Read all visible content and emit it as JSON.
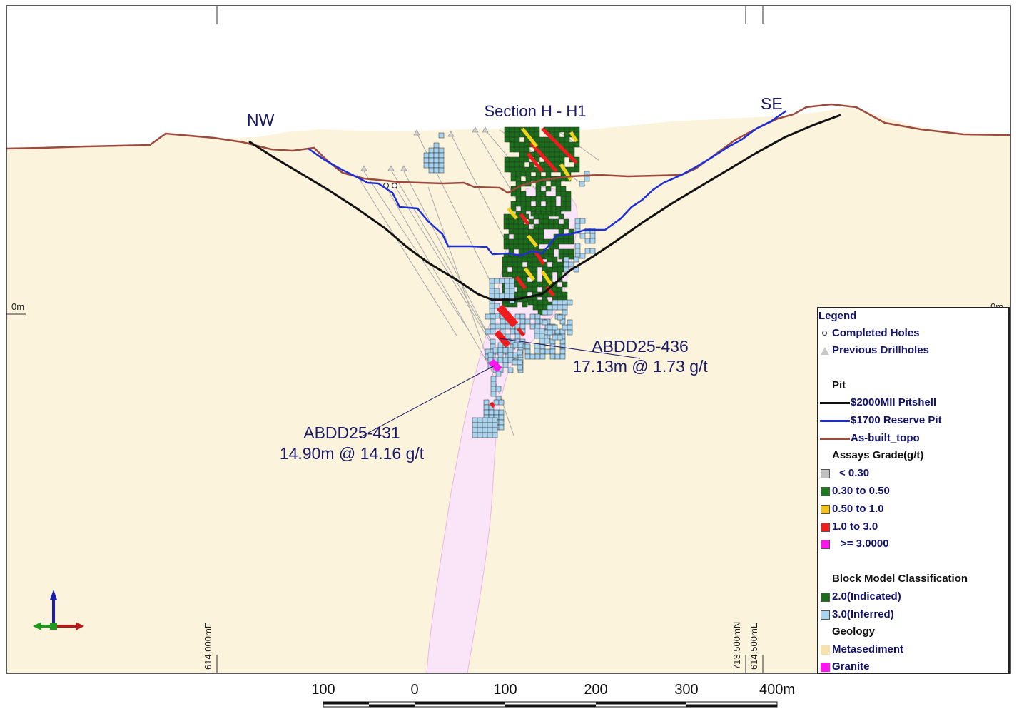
{
  "section_title": "Section H - H1",
  "direction_left": "NW",
  "direction_right": "SE",
  "elevation_label_left": "0m",
  "elevation_label_right": "0m",
  "easting_tick_1": "614,000mE",
  "northing_tick": "713,500mN",
  "easting_tick_2": "614,500mE",
  "annotation_1": {
    "hole": "ABDD25-436",
    "intercept": "17.13m @ 1.73 g/t"
  },
  "annotation_2": {
    "hole": "ABDD25-431",
    "intercept": "14.90m @ 14.16 g/t"
  },
  "scale_labels": [
    "100",
    "0",
    "100",
    "200",
    "300",
    "400m"
  ],
  "legend": {
    "title": "Legend",
    "completed_holes": "Completed Holes",
    "previous_drillholes": "Previous Drillholes",
    "pit_heading": "Pit",
    "pitshell": "$2000MII Pitshell",
    "reserve_pit": "$1700 Reserve Pit",
    "asbuilt": "As-built_topo",
    "assays_heading": "Assays Grade(g/t)",
    "grade_1": "< 0.30",
    "grade_2": "0.30 to 0.50",
    "grade_3": "0.50 to 1.0",
    "grade_4": "1.0 to 3.0",
    "grade_5": ">= 3.0000",
    "bm_heading": "Block Model Classification",
    "indicated": "2.0(Indicated)",
    "inferred": "3.0(Inferred)",
    "geology_heading": "Geology",
    "metasediment": "Metasediment",
    "granite": "Granite"
  },
  "colors": {
    "metasediment": "#fcf3dc",
    "granite": "#fae4f8",
    "pitshell": "#111111",
    "reserve_pit": "#1f2fd6",
    "asbuilt_topo": "#9c4a3e",
    "grade_low": "#c0c0c0",
    "grade_030_050": "#1e7a1e",
    "grade_050_100": "#f2d31b",
    "grade_100_300": "#ee1c1c",
    "grade_high": "#ff14f0",
    "indicated": "#1a6e1a",
    "inferred": "#a9d4ef"
  }
}
